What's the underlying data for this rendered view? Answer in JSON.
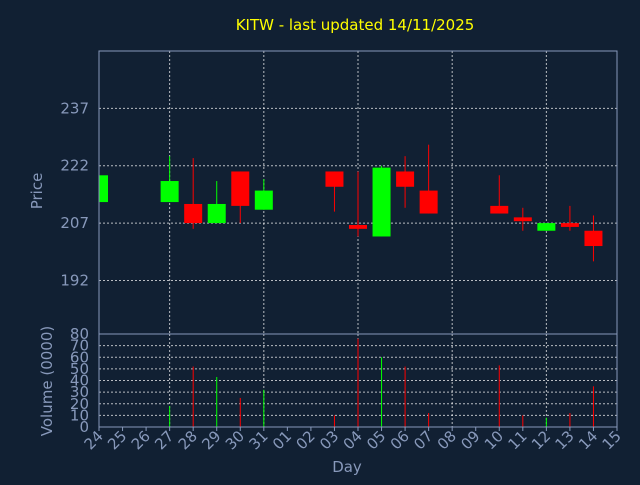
{
  "chart_data": {
    "type": "candlestick",
    "title": "KITW - last updated 14/11/2025",
    "xlabel": "Day",
    "price_panel": {
      "ylabel": "Price",
      "yticks": [
        192,
        207,
        222,
        237
      ],
      "ylim": [
        178,
        252
      ]
    },
    "volume_panel": {
      "ylabel": "Volume (0000)",
      "yticks": [
        0,
        10,
        20,
        30,
        40,
        50,
        60,
        70,
        80
      ],
      "ylim": [
        0,
        80
      ]
    },
    "x_ticks": [
      "24",
      "25",
      "26",
      "27",
      "28",
      "29",
      "30",
      "31",
      "01",
      "02",
      "03",
      "04",
      "05",
      "06",
      "07",
      "08",
      "09",
      "10",
      "11",
      "12",
      "13",
      "14",
      "15"
    ],
    "candles": [
      {
        "day": "24",
        "open": 212.5,
        "close": 219.5,
        "high": 219.5,
        "low": 212.5,
        "volume": 0
      },
      {
        "day": "27",
        "open": 212.5,
        "close": 218.0,
        "high": 224.5,
        "low": 212.5,
        "volume": 18
      },
      {
        "day": "28",
        "open": 212.0,
        "close": 207.0,
        "high": 224.0,
        "low": 205.5,
        "volume": 52
      },
      {
        "day": "29",
        "open": 207.0,
        "close": 212.0,
        "high": 218.0,
        "low": 207.0,
        "volume": 43
      },
      {
        "day": "30",
        "open": 220.5,
        "close": 211.5,
        "high": 220.5,
        "low": 207.0,
        "volume": 25
      },
      {
        "day": "31",
        "open": 210.5,
        "close": 215.5,
        "high": 218.5,
        "low": 210.5,
        "volume": 32
      },
      {
        "day": "03",
        "open": 220.5,
        "close": 216.5,
        "high": 220.5,
        "low": 210.0,
        "volume": 10
      },
      {
        "day": "04",
        "open": 206.5,
        "close": 205.5,
        "high": 220.5,
        "low": 203.5,
        "volume": 76
      },
      {
        "day": "05",
        "open": 203.5,
        "close": 221.5,
        "high": 222.0,
        "low": 203.5,
        "volume": 60
      },
      {
        "day": "06",
        "open": 220.5,
        "close": 216.5,
        "high": 224.5,
        "low": 211.0,
        "volume": 52
      },
      {
        "day": "07",
        "open": 215.5,
        "close": 209.5,
        "high": 227.5,
        "low": 209.5,
        "volume": 12
      },
      {
        "day": "10",
        "open": 211.5,
        "close": 209.5,
        "high": 219.5,
        "low": 209.5,
        "volume": 53
      },
      {
        "day": "11",
        "open": 208.5,
        "close": 207.5,
        "high": 211.0,
        "low": 205.0,
        "volume": 10
      },
      {
        "day": "12",
        "open": 205.0,
        "close": 207.0,
        "high": 207.0,
        "low": 205.0,
        "volume": 8
      },
      {
        "day": "13",
        "open": 207.0,
        "close": 206.0,
        "high": 211.5,
        "low": 205.0,
        "volume": 12
      },
      {
        "day": "14",
        "open": 205.0,
        "close": 201.0,
        "high": 209.0,
        "low": 197.0,
        "volume": 35
      }
    ],
    "colors": {
      "background": "#112033",
      "up": "#00ff00",
      "down": "#ff0000",
      "title": "#ffff00",
      "axis_text": "#8899bb",
      "grid": "#ffffff",
      "frame": "#8899bb"
    }
  }
}
